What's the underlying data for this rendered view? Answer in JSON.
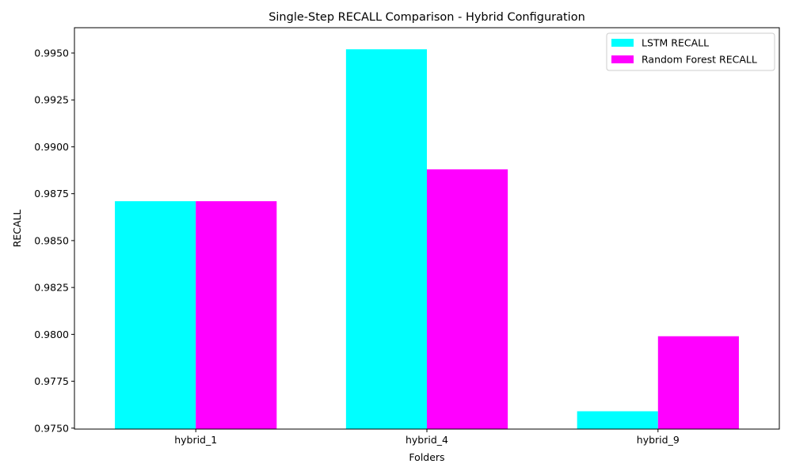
{
  "chart_data": {
    "type": "bar",
    "title": "Single-Step RECALL Comparison - Hybrid Configuration",
    "xlabel": "Folders",
    "ylabel": "RECALL",
    "categories": [
      "hybrid_1",
      "hybrid_4",
      "hybrid_9"
    ],
    "series": [
      {
        "name": "LSTM RECALL",
        "color": "#00ffff",
        "values": [
          0.9871,
          0.9952,
          0.9759
        ]
      },
      {
        "name": "Random Forest RECALL",
        "color": "#ff00ff",
        "values": [
          0.9871,
          0.9888,
          0.9799
        ]
      }
    ],
    "ylim": [
      0.97495,
      0.99635
    ],
    "yticks": [
      0.975,
      0.9775,
      0.98,
      0.9825,
      0.985,
      0.9875,
      0.99,
      0.9925,
      0.995
    ],
    "ytick_labels": [
      "0.9750",
      "0.9775",
      "0.9800",
      "0.9825",
      "0.9850",
      "0.9875",
      "0.9900",
      "0.9925",
      "0.9950"
    ],
    "grid": false,
    "legend_position": "top-right"
  }
}
